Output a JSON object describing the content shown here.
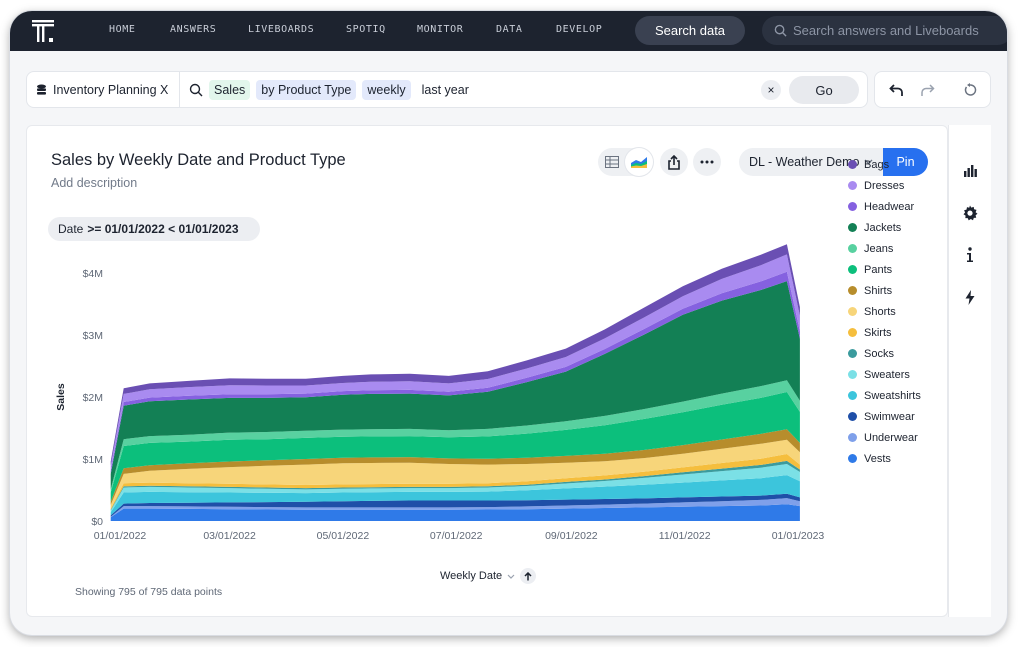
{
  "nav": {
    "items": [
      "HOME",
      "ANSWERS",
      "LIVEBOARDS",
      "SPOTIQ",
      "MONITOR",
      "DATA",
      "DEVELOP"
    ],
    "search_data_label": "Search data",
    "search_placeholder": "Search answers and Liveboards"
  },
  "query": {
    "datasource": "Inventory Planning X",
    "tokens": [
      "Sales",
      "by Product Type",
      "weekly",
      "last year"
    ],
    "clear_label": "×",
    "go_label": "Go"
  },
  "answer": {
    "title": "Sales by Weekly Date and Product Type",
    "description_placeholder": "Add description",
    "datasource_dropdown": "DL - Weather Demo",
    "pin_label": "Pin",
    "filter_prefix": "Date",
    "filter_value": ">= 01/01/2022 < 01/01/2023",
    "showing_text": "Showing 795 of 795 data points",
    "x_title": "Weekly Date"
  },
  "colors": {
    "nav_bg": "#1d232f",
    "accent": "#2770ef",
    "token_measure": "#e2f6ec",
    "token_attribute": "#e3e9fb"
  },
  "icons": {
    "toolbar": [
      "table-icon",
      "chart-icon",
      "share-icon",
      "more-icon"
    ],
    "side": [
      "bar-chart-icon",
      "gear-icon",
      "info-icon",
      "bolt-icon"
    ]
  },
  "chart_data": {
    "type": "area",
    "stacked": true,
    "title": "Sales by Weekly Date and Product Type",
    "xlabel": "Weekly Date",
    "ylabel": "Sales",
    "y_ticks": [
      "$0",
      "$1M",
      "$2M",
      "$3M",
      "$4M"
    ],
    "ylim": [
      0,
      4000000
    ],
    "x_ticks": [
      "01/01/2022",
      "03/01/2022",
      "05/01/2022",
      "07/01/2022",
      "09/01/2022",
      "11/01/2022",
      "01/01/2023"
    ],
    "x": [
      "12/27/2021",
      "01/03/2022",
      "01/17/2022",
      "02/07/2022",
      "03/01/2022",
      "03/21/2022",
      "04/11/2022",
      "05/01/2022",
      "05/16/2022",
      "06/06/2022",
      "06/27/2022",
      "07/18/2022",
      "08/08/2022",
      "08/29/2022",
      "09/19/2022",
      "10/10/2022",
      "10/31/2022",
      "11/21/2022",
      "12/12/2022",
      "12/26/2022",
      "01/02/2023"
    ],
    "legend_position": "right",
    "series": [
      {
        "name": "Bags",
        "color": "#6a4fb3",
        "values": [
          70000,
          90000,
          95000,
          100000,
          110000,
          110000,
          110000,
          115000,
          120000,
          120000,
          120000,
          125000,
          130000,
          135000,
          145000,
          160000,
          160000,
          165000,
          170000,
          165000,
          140000
        ]
      },
      {
        "name": "Dresses",
        "color": "#a98bf0",
        "values": [
          80000,
          130000,
          135000,
          140000,
          145000,
          140000,
          130000,
          130000,
          135000,
          140000,
          135000,
          140000,
          150000,
          160000,
          170000,
          185000,
          200000,
          230000,
          260000,
          280000,
          250000
        ]
      },
      {
        "name": "Headwear",
        "color": "#8561e0",
        "values": [
          50000,
          60000,
          60000,
          60000,
          60000,
          60000,
          60000,
          60000,
          60000,
          60000,
          60000,
          65000,
          70000,
          75000,
          80000,
          90000,
          100000,
          120000,
          140000,
          150000,
          120000
        ]
      },
      {
        "name": "Jackets",
        "color": "#138055",
        "values": [
          250000,
          540000,
          560000,
          570000,
          560000,
          550000,
          540000,
          560000,
          570000,
          570000,
          560000,
          600000,
          700000,
          800000,
          1000000,
          1200000,
          1400000,
          1500000,
          1550000,
          1600000,
          1000000
        ]
      },
      {
        "name": "Jeans",
        "color": "#58d1a0",
        "values": [
          50000,
          110000,
          110000,
          110000,
          115000,
          115000,
          115000,
          115000,
          115000,
          115000,
          115000,
          120000,
          130000,
          140000,
          150000,
          160000,
          170000,
          180000,
          190000,
          190000,
          180000
        ]
      },
      {
        "name": "Pants",
        "color": "#0cbf7c",
        "values": [
          150000,
          360000,
          360000,
          350000,
          350000,
          340000,
          340000,
          340000,
          340000,
          340000,
          340000,
          360000,
          390000,
          420000,
          460000,
          500000,
          530000,
          560000,
          580000,
          600000,
          500000
        ]
      },
      {
        "name": "Shirts",
        "color": "#b78d2c",
        "values": [
          50000,
          90000,
          90000,
          90000,
          90000,
          90000,
          90000,
          90000,
          90000,
          90000,
          90000,
          95000,
          100000,
          110000,
          120000,
          130000,
          140000,
          150000,
          160000,
          170000,
          150000
        ]
      },
      {
        "name": "Shorts",
        "color": "#f7d57a",
        "values": [
          60000,
          150000,
          190000,
          230000,
          270000,
          300000,
          330000,
          340000,
          340000,
          340000,
          320000,
          300000,
          280000,
          250000,
          230000,
          220000,
          220000,
          230000,
          240000,
          230000,
          200000
        ]
      },
      {
        "name": "Skirts",
        "color": "#f5be3d",
        "values": [
          20000,
          50000,
          50000,
          50000,
          50000,
          50000,
          50000,
          50000,
          50000,
          50000,
          50000,
          50000,
          55000,
          60000,
          65000,
          70000,
          80000,
          90000,
          100000,
          110000,
          80000
        ]
      },
      {
        "name": "Socks",
        "color": "#3b9b9d",
        "values": [
          10000,
          20000,
          20000,
          20000,
          20000,
          20000,
          20000,
          20000,
          20000,
          20000,
          20000,
          20000,
          20000,
          25000,
          25000,
          30000,
          35000,
          40000,
          45000,
          50000,
          40000
        ]
      },
      {
        "name": "Sweaters",
        "color": "#7be0e6",
        "values": [
          30000,
          80000,
          80000,
          75000,
          70000,
          65000,
          60000,
          60000,
          60000,
          60000,
          60000,
          65000,
          70000,
          80000,
          90000,
          110000,
          130000,
          150000,
          170000,
          180000,
          150000
        ]
      },
      {
        "name": "Sweatshirts",
        "color": "#3cc5dc",
        "values": [
          50000,
          180000,
          180000,
          170000,
          160000,
          150000,
          140000,
          140000,
          140000,
          140000,
          140000,
          145000,
          160000,
          180000,
          200000,
          220000,
          240000,
          260000,
          280000,
          300000,
          260000
        ]
      },
      {
        "name": "Swimwear",
        "color": "#1f4fa8",
        "values": [
          20000,
          40000,
          50000,
          60000,
          70000,
          80000,
          90000,
          100000,
          105000,
          110000,
          110000,
          105000,
          100000,
          95000,
          90000,
          85000,
          80000,
          75000,
          70000,
          70000,
          60000
        ]
      },
      {
        "name": "Underwear",
        "color": "#7fa0ea",
        "values": [
          10000,
          40000,
          40000,
          40000,
          40000,
          40000,
          40000,
          40000,
          40000,
          40000,
          40000,
          40000,
          45000,
          50000,
          55000,
          60000,
          70000,
          80000,
          90000,
          100000,
          80000
        ]
      },
      {
        "name": "Vests",
        "color": "#2f7ae8",
        "values": [
          60000,
          200000,
          200000,
          195000,
          190000,
          185000,
          180000,
          180000,
          180000,
          180000,
          180000,
          185000,
          190000,
          200000,
          210000,
          220000,
          230000,
          240000,
          250000,
          270000,
          240000
        ]
      }
    ]
  }
}
